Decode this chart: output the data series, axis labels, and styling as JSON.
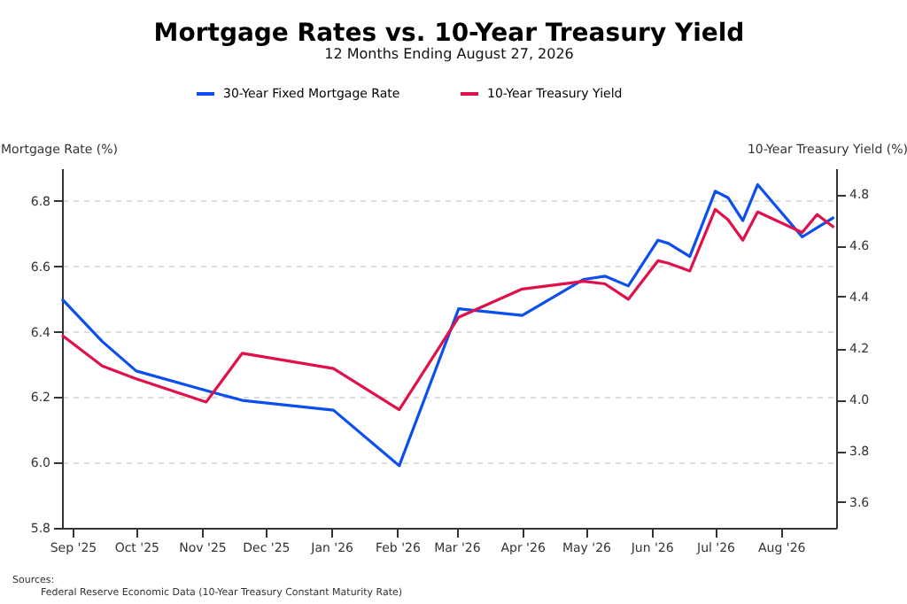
{
  "chart_data": {
    "type": "line",
    "title": "Mortgage Rates vs. 10-Year Treasury Yield",
    "subtitle": "12 Months Ending August 27, 2026",
    "ylabel": "Mortgage Rate (%)",
    "y2label": "10-Year Treasury Yield (%)",
    "xlim": [
      "2025-08-27",
      "2026-08-27"
    ],
    "xticks": [
      {
        "value": "2025-09-01",
        "label": "Sep '25"
      },
      {
        "value": "2025-10-01",
        "label": "Oct '25"
      },
      {
        "value": "2025-11-01",
        "label": "Nov '25"
      },
      {
        "value": "2025-12-01",
        "label": "Dec '25"
      },
      {
        "value": "2026-01-01",
        "label": "Jan '26"
      },
      {
        "value": "2026-02-01",
        "label": "Feb '26"
      },
      {
        "value": "2026-03-01",
        "label": "Mar '26"
      },
      {
        "value": "2026-04-01",
        "label": "Apr '26"
      },
      {
        "value": "2026-05-01",
        "label": "May '26"
      },
      {
        "value": "2026-06-01",
        "label": "Jun '26"
      },
      {
        "value": "2026-07-01",
        "label": "Jul '26"
      },
      {
        "value": "2026-08-01",
        "label": "Aug '26"
      }
    ],
    "ylim": [
      5.8,
      6.9
    ],
    "yticks": [
      5.8,
      {
        "value": 6,
        "label": "6.0"
      },
      6.2,
      6.4,
      6.6,
      6.8
    ],
    "y2lim": [
      3.5,
      4.9
    ],
    "y2ticks": [
      3.6,
      3.8,
      {
        "value": 4,
        "label": "4.0"
      },
      4.2,
      4.4,
      4.6,
      4.8
    ],
    "grid": "y",
    "legend": "top",
    "line_style": "solid",
    "marker": "none",
    "series": [
      {
        "name": "30-Year Fixed Mortgage Rate",
        "color": "#0b4ff0",
        "x": [
          "2025-08-27",
          "2025-09-15",
          "2025-10-01",
          "2025-11-03",
          "2025-11-20",
          "2026-01-02",
          "2026-02-02",
          "2026-03-02",
          "2026-04-01",
          "2026-04-30",
          "2026-05-10",
          "2026-05-21",
          "2026-06-04",
          "2026-06-09",
          "2026-06-19",
          "2026-07-01",
          "2026-07-07",
          "2026-07-14",
          "2026-07-21",
          "2026-08-11",
          "2026-08-26"
        ],
        "values": [
          6.5,
          6.37,
          6.28,
          6.22,
          6.19,
          6.16,
          5.99,
          6.47,
          6.45,
          6.56,
          6.57,
          6.54,
          6.68,
          6.67,
          6.63,
          6.83,
          6.81,
          6.74,
          6.85,
          6.69,
          6.75
        ]
      },
      {
        "name": "10-Year Treasury Yield",
        "color": "#e0104a",
        "axis": "y2",
        "x": [
          "2025-08-27",
          "2025-09-15",
          "2025-10-01",
          "2025-11-03",
          "2025-11-20",
          "2026-01-02",
          "2026-02-02",
          "2026-03-02",
          "2026-04-01",
          "2026-04-30",
          "2026-05-10",
          "2026-05-21",
          "2026-06-04",
          "2026-06-09",
          "2026-06-19",
          "2026-07-01",
          "2026-07-07",
          "2026-07-14",
          "2026-07-21",
          "2026-08-11",
          "2026-08-18",
          "2026-08-26"
        ],
        "values": [
          4.25,
          4.13,
          4.08,
          3.99,
          4.18,
          4.12,
          3.96,
          4.32,
          4.43,
          4.46,
          4.45,
          4.39,
          4.54,
          4.53,
          4.5,
          4.74,
          4.7,
          4.62,
          4.73,
          4.65,
          4.72,
          4.67
        ]
      }
    ],
    "annotations": [
      "Sources:",
      "Federal Reserve Economic Data (10-Year Treasury Constant Maturity Rate)"
    ]
  }
}
